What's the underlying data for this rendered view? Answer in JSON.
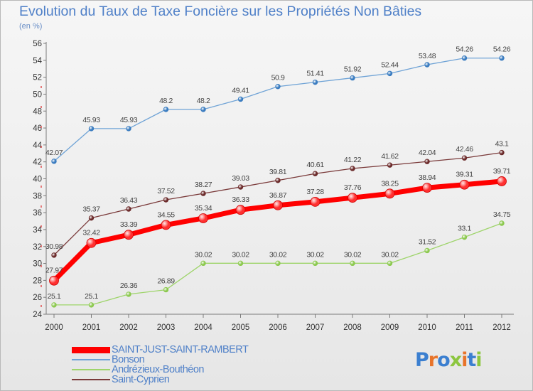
{
  "title": "Evolution du Taux de Taxe Foncière sur les Propriétés Non Bâties",
  "subtitle": "(en %)",
  "logo": {
    "text": "Proxiti",
    "colors": [
      "#3b7fd0",
      "#e8742a",
      "#3b7fd0",
      "#8cc63f",
      "#e8742a",
      "#3b7fd0",
      "#8cc63f"
    ]
  },
  "chart_data": {
    "type": "line",
    "title": "Evolution du Taux de Taxe Foncière sur les Propriétés Non Bâties",
    "ylabel": "(en %)",
    "xlabel": "",
    "x": [
      "2000",
      "2001",
      "2002",
      "2003",
      "2004",
      "2005",
      "2006",
      "2007",
      "2008",
      "2009",
      "2010",
      "2011",
      "2012"
    ],
    "ylim": [
      24,
      56
    ],
    "yticks": [
      24,
      26,
      28,
      30,
      32,
      34,
      36,
      38,
      40,
      42,
      44,
      46,
      48,
      50,
      52,
      54,
      56
    ],
    "grid": false,
    "legend": "bottom-left",
    "series": [
      {
        "name": "SAINT-JUST-SAINT-RAMBERT",
        "color": "#ff0000",
        "marker": "#ff3030",
        "labels": [
          "27.97",
          "32.42",
          "33.39",
          "34.55",
          "35.34",
          "36.33",
          "36.87",
          "37.28",
          "37.76",
          "38.25",
          "38.94",
          "39.31",
          "39.71"
        ],
        "values": [
          27.97,
          32.42,
          33.39,
          34.55,
          35.34,
          36.33,
          36.87,
          37.28,
          37.76,
          38.25,
          38.94,
          39.31,
          39.71
        ],
        "bold": true
      },
      {
        "name": "Bonson",
        "color": "#6fa3d6",
        "marker": "#3a7cc0",
        "labels": [
          "42.07",
          "45.93",
          "45.93",
          "48.2",
          "48.2",
          "49.41",
          "50.9",
          "51.41",
          "51.92",
          "52.44",
          "53.48",
          "54.26",
          "54.26"
        ],
        "values": [
          42.07,
          45.93,
          45.93,
          48.2,
          48.2,
          49.41,
          50.9,
          51.41,
          51.92,
          52.44,
          53.48,
          54.26,
          54.26
        ]
      },
      {
        "name": "Andrézieux-Bouthéon",
        "color": "#9ed46a",
        "marker": "#8cc94f",
        "labels": [
          "25.1",
          "25.1",
          "26.36",
          "26.89",
          "30.02",
          "30.02",
          "30.02",
          "30.02",
          "30.02",
          "30.02",
          "31.52",
          "33.1",
          "34.75"
        ],
        "values": [
          25.1,
          25.1,
          26.36,
          26.89,
          30.02,
          30.02,
          30.02,
          30.02,
          30.02,
          30.02,
          31.52,
          33.1,
          34.75
        ]
      },
      {
        "name": "Saint-Cyprien",
        "color": "#7a3a3a",
        "marker": "#6b2a2a",
        "labels": [
          "30.98",
          "35.37",
          "36.43",
          "37.52",
          "38.27",
          "39.03",
          "39.81",
          "40.61",
          "41.22",
          "41.62",
          "42.04",
          "42.46",
          "43.1"
        ],
        "values": [
          30.98,
          35.37,
          36.43,
          37.52,
          38.27,
          39.03,
          39.81,
          40.61,
          41.22,
          41.62,
          42.04,
          42.46,
          43.1
        ]
      }
    ]
  }
}
